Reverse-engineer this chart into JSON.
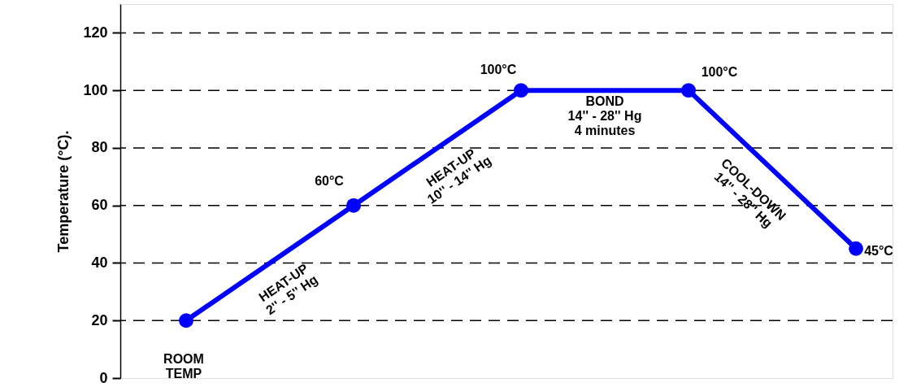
{
  "chart_data": {
    "type": "line",
    "ylabel": "Temperature (°C).",
    "categories": [
      null,
      null,
      null,
      null,
      null
    ],
    "series": [
      {
        "color": "#0000ff",
        "values": [
          20,
          60,
          100,
          100,
          45
        ]
      }
    ],
    "ylim": [
      0,
      130
    ],
    "yticks": [
      0,
      20,
      40,
      60,
      80,
      100,
      120
    ],
    "grid": "y",
    "marker": "circle",
    "line_style": "solid",
    "tick_labels": "y",
    "annotations": [
      "ROOM\nTEMP",
      "60°C",
      "100°C",
      "BOND\n14'' - 28'' Hg\n4 minutes",
      "100°C",
      "45°C",
      "HEAT-UP\n2'' - 5'' Hg",
      "HEAT-UP\n10'' - 14'' Hg",
      "COOL-DOWN\n14'' - 28'' Hg"
    ]
  }
}
